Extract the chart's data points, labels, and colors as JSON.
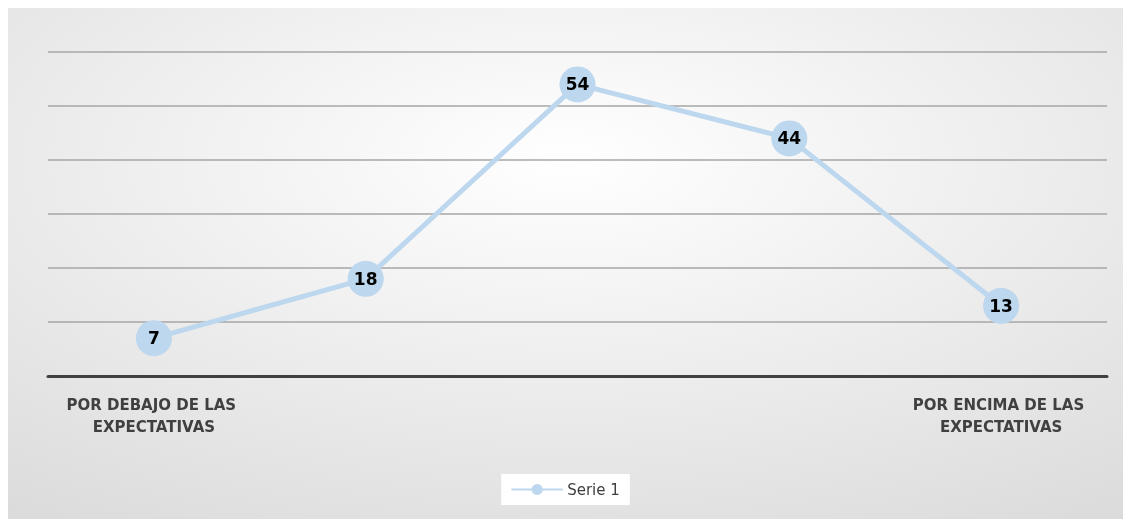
{
  "chart_data": {
    "type": "line",
    "categories": [
      "POR DEBAJO DE LAS EXPECTATIVAS",
      null,
      null,
      null,
      "POR ENCIMA DE LAS EXPECTATIVAS"
    ],
    "series": [
      {
        "name": "Serie 1",
        "color": "#bdd7ee",
        "values": [
          7,
          18,
          54,
          44,
          13
        ]
      }
    ],
    "ylim": [
      0,
      60
    ],
    "yticks": [
      0,
      10,
      20,
      30,
      40,
      50,
      60
    ],
    "grid": "y",
    "legend": "bottom",
    "tick_labels": "x",
    "marker": "circle",
    "line_style": "solid",
    "data_labels": true
  }
}
